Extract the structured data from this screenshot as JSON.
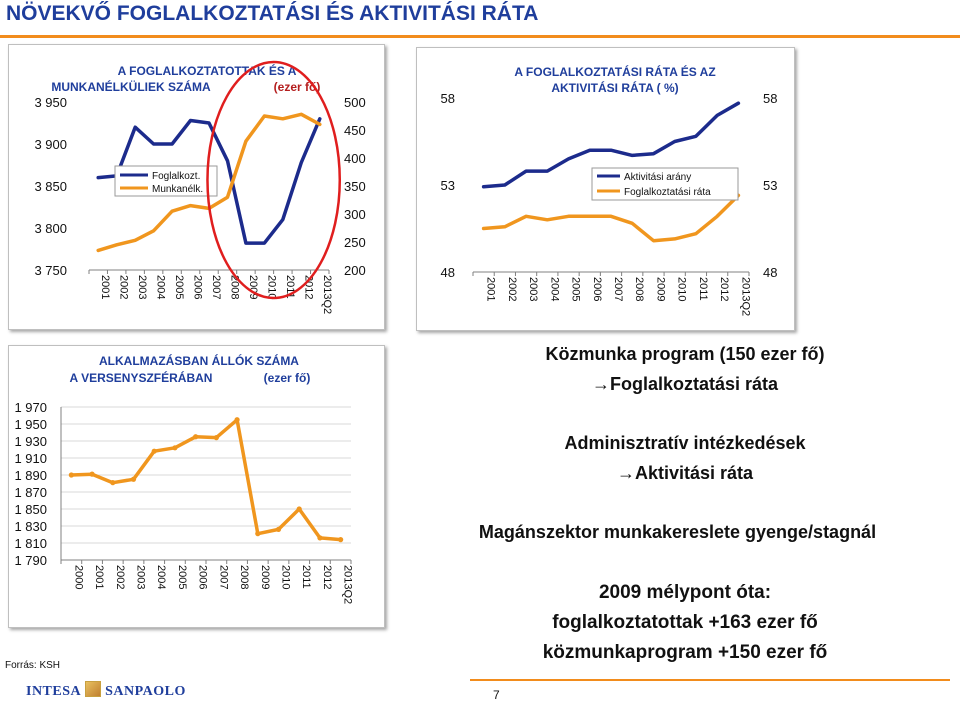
{
  "page": {
    "title": "NÖVEKVŐ FOGLALKOZTATÁSI ÉS AKTIVITÁSI RÁTA",
    "source": "Forrás: KSH",
    "page_number": "7",
    "logo_left": "INTESA",
    "logo_right": "SANPAOLO",
    "accent_color": "#f28c1c",
    "title_color": "#1f3e9c"
  },
  "bullets": {
    "b1_line1": "Közmunka program (150 ezer fő)",
    "b1_line2": "→Foglalkoztatási ráta",
    "b2_line1": "Adminisztratív intézkedések",
    "b2_line2": "→Aktivitási ráta",
    "b3_line1": "Magánszektor munkakereslete gyenge/stagnál",
    "b4_line1": "2009 mélypont óta:",
    "b4_line2": "foglalkoztatottak +163 ezer fő",
    "b4_line3": "közmunkaprogram +150 ezer fő"
  },
  "chart_data": [
    {
      "type": "line",
      "title": "A FOGLALKOZTATOTTAK ÉS A MUNKANÉLKÜLIEK SZÁMA (ezer fő)",
      "title_line1": "A FOGLALKOZTATOTTAK ÉS A",
      "title_line2_a": "MUNKANÉLKÜLIEK SZÁMA",
      "title_line2_b": "(ezer fő)",
      "categories": [
        "2001",
        "2002",
        "2003",
        "2004",
        "2005",
        "2006",
        "2007",
        "2008",
        "2009",
        "2010",
        "2011",
        "2012",
        "2013Q2"
      ],
      "ylim_left": [
        3750,
        3950
      ],
      "yticks_left": [
        "3 950",
        "3 900",
        "3 850",
        "3 800",
        "3 750"
      ],
      "ylim_right": [
        200,
        500
      ],
      "yticks_right": [
        "500",
        "450",
        "400",
        "350",
        "300",
        "250",
        "200"
      ],
      "legend_position": "middle-left",
      "highlight": "red ellipse around 2008-2012",
      "series": [
        {
          "name": "Foglalkozt.",
          "color": "#1c2b8c",
          "axis": "left",
          "values": [
            3860,
            3862,
            3920,
            3900,
            3900,
            3928,
            3925,
            3880,
            3782,
            3782,
            3810,
            3878,
            3930
          ]
        },
        {
          "name": "Munkanélk.",
          "color": "#f0961e",
          "axis": "right",
          "values": [
            235,
            245,
            253,
            270,
            305,
            315,
            310,
            330,
            430,
            475,
            470,
            478,
            460
          ]
        }
      ]
    },
    {
      "type": "line",
      "title": "A FOGLALKOZTATÁSI RÁTA ÉS AZ AKTIVITÁSI RÁTA ( %)",
      "title_line1": "A FOGLALKOZTATÁSI RÁTA ÉS AZ",
      "title_line2": "AKTIVITÁSI RÁTA ( %)",
      "categories": [
        "2001",
        "2002",
        "2003",
        "2004",
        "2005",
        "2006",
        "2007",
        "2008",
        "2009",
        "2010",
        "2011",
        "2012",
        "2013Q2"
      ],
      "ylim": [
        48,
        58
      ],
      "yticks": [
        "58",
        "53",
        "48"
      ],
      "legend_position": "middle-right",
      "series": [
        {
          "name": "Aktivitási arány",
          "color": "#1c2b8c",
          "values": [
            52.9,
            53.0,
            53.8,
            53.8,
            54.5,
            55.0,
            55.0,
            54.7,
            54.8,
            55.5,
            55.8,
            57.0,
            57.7
          ]
        },
        {
          "name": "Foglalkoztatási ráta",
          "color": "#f0961e",
          "values": [
            50.5,
            50.6,
            51.2,
            51.0,
            51.2,
            51.2,
            51.2,
            50.8,
            49.8,
            49.9,
            50.2,
            51.2,
            52.4
          ]
        }
      ]
    },
    {
      "type": "line",
      "title": "ALKALMAZÁSBAN ÁLLÓK SZÁMA A VERSENYSZFÉRÁBAN (ezer fő)",
      "title_line1": "ALKALMAZÁSBAN ÁLLÓK SZÁMA",
      "title_line2_a": "A VERSENYSZFÉRÁBAN",
      "title_line2_b": "(ezer fő)",
      "categories": [
        "2000",
        "2001",
        "2002",
        "2003",
        "2004",
        "2005",
        "2006",
        "2007",
        "2008",
        "2009",
        "2010",
        "2011",
        "2012",
        "2013Q2"
      ],
      "ylim": [
        1790,
        1970
      ],
      "yticks": [
        "1 970",
        "1 950",
        "1 930",
        "1 910",
        "1 890",
        "1 870",
        "1 850",
        "1 830",
        "1 810",
        "1 790"
      ],
      "series": [
        {
          "color": "#f0961e",
          "values": [
            1890,
            1891,
            1881,
            1885,
            1918,
            1922,
            1935,
            1934,
            1955,
            1821,
            1826,
            1850,
            1816,
            1814
          ]
        }
      ]
    }
  ]
}
